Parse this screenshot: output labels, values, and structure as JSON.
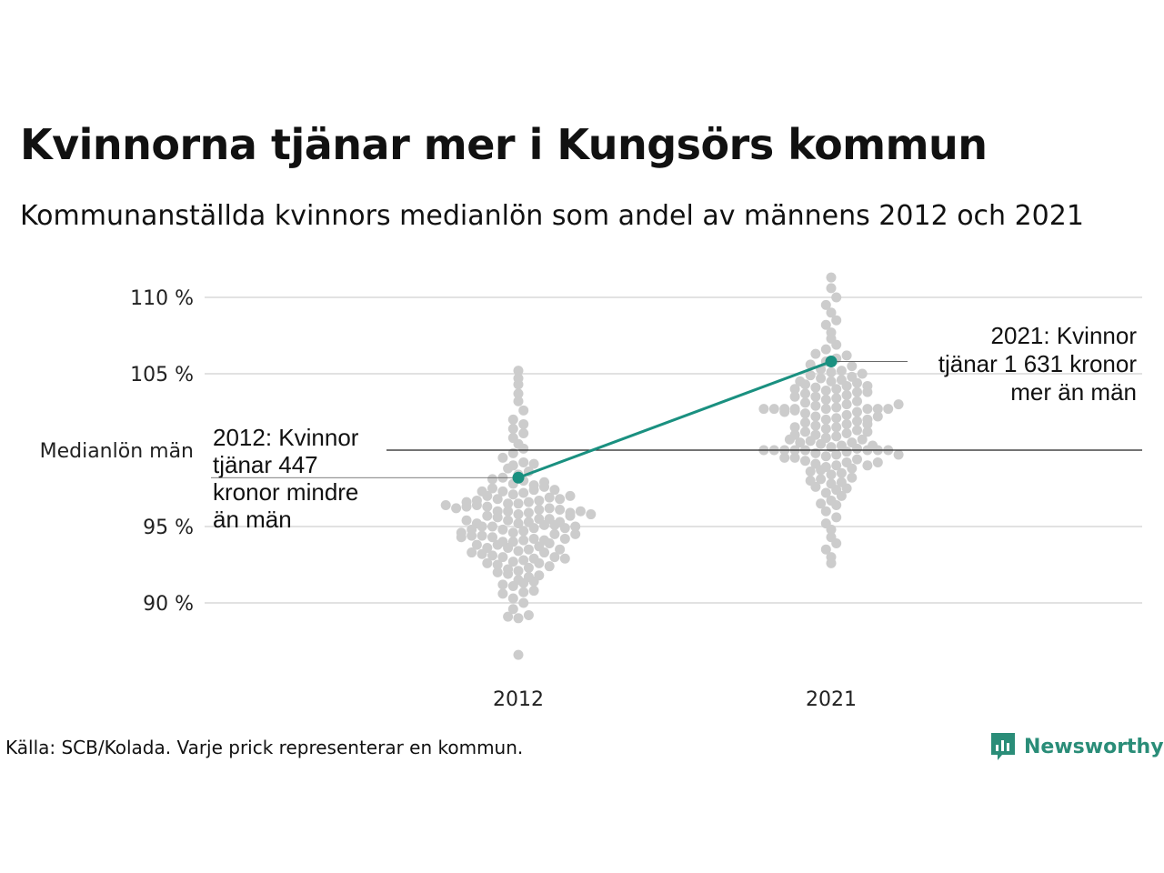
{
  "header": {
    "title": "Kvinnorna tjänar mer i Kungsörs kommun",
    "subtitle": "Kommunanställda kvinnors medianlön som andel av männens 2012 och 2021"
  },
  "footer": {
    "source": "Källa: SCB/Kolada. Varje prick representerar en kommun.",
    "brand": "Newsworthy"
  },
  "colors": {
    "highlight": "#1a9080",
    "dots": "#cccccc",
    "grid": "#e2e2e2",
    "reference_line": "#222222",
    "brand": "#2a8d78"
  },
  "chart_data": {
    "type": "scatter",
    "categories": [
      "2012",
      "2021"
    ],
    "ylim": [
      86,
      111
    ],
    "y_ticks": [
      {
        "value": 90,
        "label": "90 %"
      },
      {
        "value": 95,
        "label": "95 %"
      },
      {
        "value": 105,
        "label": "105 %"
      },
      {
        "value": 110,
        "label": "110 %"
      }
    ],
    "reference_line": {
      "value": 100,
      "label": "Medianlön män"
    },
    "grid": true,
    "highlight": {
      "values": [
        98.2,
        105.8
      ],
      "annotations": [
        {
          "category": "2012",
          "lines": [
            "2012: Kvinnor",
            "tjänar 447",
            "kronor mindre",
            "än män"
          ]
        },
        {
          "category": "2021",
          "lines": [
            "2021: Kvinnor",
            "tjänar 1 631 kronor",
            "mer än män"
          ]
        }
      ]
    },
    "series": [
      {
        "category": "2012",
        "values": [
          86.6,
          89.0,
          89.2,
          89.1,
          89.6,
          90.0,
          90.3,
          90.7,
          90.6,
          90.8,
          91.1,
          91.3,
          91.5,
          91.2,
          91.7,
          91.9,
          92.1,
          91.8,
          92.3,
          92.2,
          92.6,
          92.5,
          92.7,
          92.4,
          92.6,
          92.8,
          93.0,
          92.9,
          93.1,
          93.3,
          93.2,
          93.4,
          93.5,
          93.6,
          93.7,
          93.8,
          93.9,
          94.0,
          94.1,
          94.0,
          94.2,
          94.3,
          94.1,
          94.4,
          94.5,
          94.6,
          94.4,
          94.7,
          94.8,
          94.9,
          95.0,
          95.1,
          95.0,
          95.2,
          95.3,
          95.1,
          95.4,
          95.5,
          95.6,
          95.5,
          95.7,
          95.8,
          95.9,
          96.0,
          96.1,
          96.0,
          96.2,
          96.3,
          96.1,
          96.4,
          96.5,
          96.6,
          96.5,
          96.7,
          96.8,
          96.9,
          97.0,
          97.1,
          97.2,
          97.3,
          97.4,
          97.5,
          97.6,
          97.8,
          98.0,
          98.2,
          98.4,
          98.6,
          98.8,
          99.0,
          99.2,
          99.5,
          99.8,
          100.1,
          100.4,
          100.8,
          101.1,
          101.4,
          101.7,
          102.0,
          102.6,
          103.2,
          103.7,
          104.3,
          104.7,
          105.2,
          93.0,
          93.6,
          94.2,
          94.8,
          95.3,
          95.9,
          96.3,
          96.8,
          97.3,
          97.7,
          92.0,
          93.5,
          94.3,
          95.2,
          96.0,
          96.7,
          97.4,
          98.1,
          99.1,
          91.4,
          93.8,
          95.7,
          96.2,
          97.0,
          94.9,
          95.4,
          95.8,
          96.4,
          93.3,
          94.6,
          97.9,
          92.9,
          95.0,
          94.5,
          96.6
        ],
        "highlight": 98.2
      },
      {
        "category": "2021",
        "values": [
          92.6,
          93.0,
          93.5,
          93.9,
          94.3,
          94.8,
          95.2,
          95.6,
          96.0,
          96.4,
          96.7,
          97.0,
          97.2,
          97.4,
          97.6,
          97.8,
          97.9,
          98.1,
          98.2,
          98.4,
          98.5,
          98.7,
          98.8,
          98.9,
          99.0,
          99.1,
          99.2,
          99.3,
          99.4,
          99.5,
          99.6,
          99.7,
          99.8,
          99.9,
          100.0,
          100.1,
          100.2,
          100.3,
          100.4,
          100.5,
          100.6,
          100.7,
          100.8,
          100.9,
          101.0,
          101.1,
          101.2,
          101.3,
          101.4,
          101.5,
          101.6,
          101.7,
          101.8,
          101.9,
          102.0,
          102.1,
          102.2,
          102.3,
          102.4,
          102.5,
          102.6,
          102.7,
          102.8,
          102.9,
          103.0,
          103.1,
          103.2,
          103.3,
          103.4,
          103.5,
          103.6,
          103.7,
          103.8,
          103.9,
          104.0,
          104.1,
          104.2,
          104.3,
          104.4,
          104.5,
          104.6,
          104.7,
          104.8,
          104.9,
          105.0,
          105.1,
          105.2,
          105.3,
          105.5,
          105.8,
          106.0,
          106.3,
          106.6,
          106.9,
          107.3,
          107.7,
          108.2,
          108.5,
          109.0,
          109.5,
          110.0,
          110.6,
          111.3,
          100.0,
          100.0,
          100.0,
          100.0,
          100.0,
          100.0,
          100.0,
          102.7,
          102.7,
          102.7,
          102.7,
          102.7,
          102.7,
          102.7,
          99.0,
          99.5,
          100.5,
          101.0,
          101.5,
          102.0,
          102.5,
          103.5,
          104.0,
          104.5,
          98.0,
          98.6,
          101.7,
          103.0,
          103.8,
          97.5,
          96.5,
          99.2,
          100.3,
          101.2,
          102.2,
          104.2,
          105.6,
          106.2,
          99.7,
          100.7
        ],
        "highlight": 105.8
      }
    ]
  }
}
